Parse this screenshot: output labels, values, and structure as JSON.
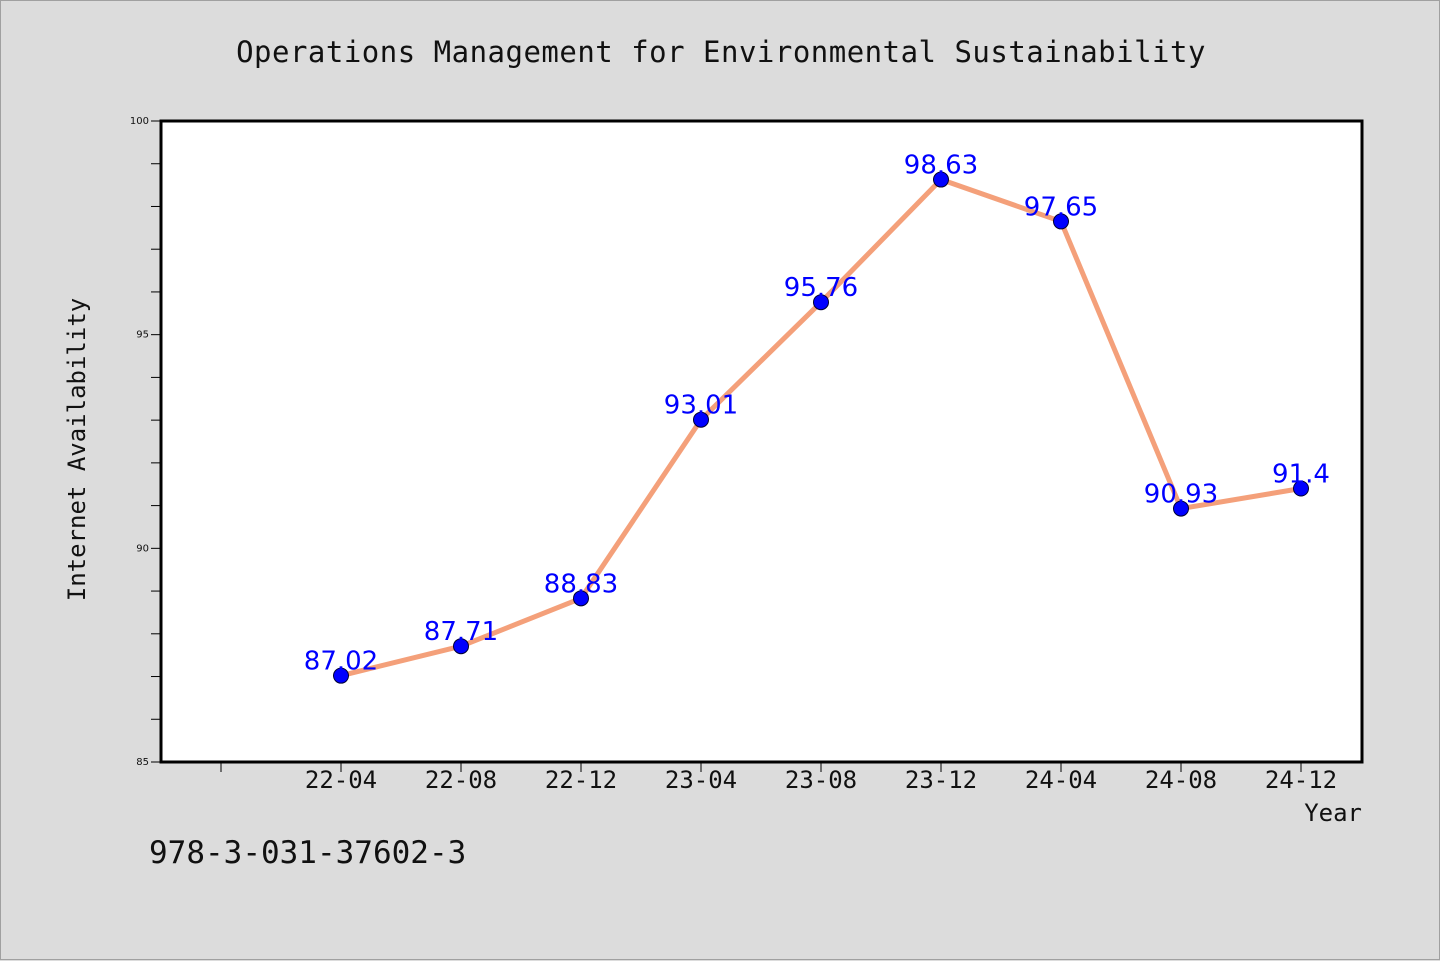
{
  "chart_data": {
    "type": "line",
    "title": "Operations Management for Environmental Sustainability",
    "xlabel": "Year",
    "ylabel": "Internet Availability",
    "categories": [
      "22-04",
      "22-08",
      "22-12",
      "23-04",
      "23-08",
      "23-12",
      "24-04",
      "24-08",
      "24-12"
    ],
    "series": [
      {
        "values": [
          87.02,
          87.71,
          88.83,
          93.01,
          95.76,
          98.63,
          97.65,
          90.93,
          91.4
        ]
      }
    ],
    "data_labels": [
      "87.02",
      "87.71",
      "88.83",
      "93.01",
      "95.76",
      "98.63",
      "97.65",
      "90.93",
      "91.4"
    ],
    "ylim": [
      85,
      100
    ],
    "yticks": [
      "85",
      "90",
      "95",
      "100"
    ],
    "grid": false,
    "colors": {
      "line": "#f4a07a",
      "marker": "#0000ff",
      "label": "#0000ff",
      "plot_bg": "#ffffff",
      "page_bg": "#dcdcdc"
    }
  },
  "footnote": "978-3-031-37602-3"
}
